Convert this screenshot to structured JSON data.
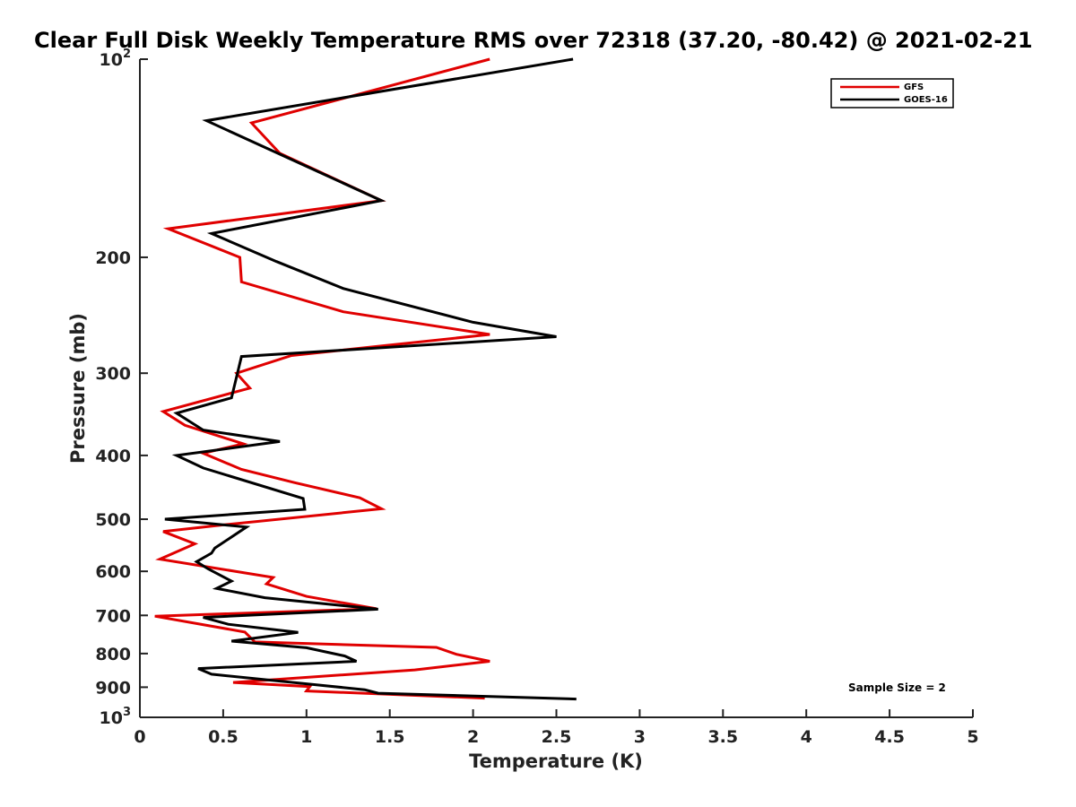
{
  "chart_data": {
    "type": "line",
    "title": "Clear Full Disk Weekly Temperature RMS over 72318 (37.20, -80.42) @ 2021-02-21",
    "xlabel": "Temperature (K)",
    "ylabel": "Pressure (mb)",
    "xlim": [
      0,
      5
    ],
    "ylim": [
      100,
      1000
    ],
    "y_scale": "log",
    "y_reversed": true,
    "grid": false,
    "legend_position": "top-right",
    "x_ticks": [
      {
        "value": 0,
        "label": "0"
      },
      {
        "value": 0.5,
        "label": "0.5"
      },
      {
        "value": 1,
        "label": "1"
      },
      {
        "value": 1.5,
        "label": "1.5"
      },
      {
        "value": 2,
        "label": "2"
      },
      {
        "value": 2.5,
        "label": "2.5"
      },
      {
        "value": 3,
        "label": "3"
      },
      {
        "value": 3.5,
        "label": "3.5"
      },
      {
        "value": 4,
        "label": "4"
      },
      {
        "value": 4.5,
        "label": "4.5"
      },
      {
        "value": 5,
        "label": "5"
      }
    ],
    "y_ticks": [
      {
        "value": 100,
        "label": "10",
        "sup": "2"
      },
      {
        "value": 200,
        "label": "200",
        "sup": ""
      },
      {
        "value": 300,
        "label": "300",
        "sup": ""
      },
      {
        "value": 400,
        "label": "400",
        "sup": ""
      },
      {
        "value": 500,
        "label": "500",
        "sup": ""
      },
      {
        "value": 600,
        "label": "600",
        "sup": ""
      },
      {
        "value": 700,
        "label": "700",
        "sup": ""
      },
      {
        "value": 800,
        "label": "800",
        "sup": ""
      },
      {
        "value": 900,
        "label": "900",
        "sup": ""
      },
      {
        "value": 1000,
        "label": "10",
        "sup": "3"
      }
    ],
    "series": [
      {
        "name": "GFS",
        "color": "#e00000",
        "points": [
          [
            2.1,
            100
          ],
          [
            0.67,
            125
          ],
          [
            0.84,
            139
          ],
          [
            1.45,
            164
          ],
          [
            0.17,
            181
          ],
          [
            0.6,
            200
          ],
          [
            0.61,
            218
          ],
          [
            1.22,
            242
          ],
          [
            2.1,
            262
          ],
          [
            0.91,
            282
          ],
          [
            0.58,
            300
          ],
          [
            0.66,
            316
          ],
          [
            0.14,
            343
          ],
          [
            0.27,
            360
          ],
          [
            0.62,
            384
          ],
          [
            0.38,
            397
          ],
          [
            0.61,
            420
          ],
          [
            0.93,
            440
          ],
          [
            1.32,
            464
          ],
          [
            1.45,
            482
          ],
          [
            0.5,
            510
          ],
          [
            0.14,
            522
          ],
          [
            0.33,
            545
          ],
          [
            0.12,
            575
          ],
          [
            0.8,
            613
          ],
          [
            0.76,
            627
          ],
          [
            1.0,
            655
          ],
          [
            1.42,
            684
          ],
          [
            0.09,
            702
          ],
          [
            0.63,
            742
          ],
          [
            0.69,
            768
          ],
          [
            1.78,
            783
          ],
          [
            1.9,
            802
          ],
          [
            2.1,
            822
          ],
          [
            1.65,
            847
          ],
          [
            0.56,
            885
          ],
          [
            1.02,
            898
          ],
          [
            1.0,
            912
          ],
          [
            2.07,
            935
          ]
        ]
      },
      {
        "name": "GOES-16",
        "color": "#000000",
        "points": [
          [
            2.6,
            100
          ],
          [
            0.4,
            124
          ],
          [
            1.45,
            164
          ],
          [
            0.43,
            184
          ],
          [
            0.82,
            203
          ],
          [
            1.22,
            223
          ],
          [
            2.0,
            251
          ],
          [
            2.5,
            264
          ],
          [
            0.61,
            283
          ],
          [
            0.55,
            327
          ],
          [
            0.22,
            345
          ],
          [
            0.38,
            366
          ],
          [
            0.84,
            381
          ],
          [
            0.22,
            400
          ],
          [
            0.38,
            418
          ],
          [
            0.98,
            465
          ],
          [
            0.99,
            483
          ],
          [
            0.15,
            500
          ],
          [
            0.64,
            514
          ],
          [
            0.45,
            553
          ],
          [
            0.43,
            563
          ],
          [
            0.34,
            580
          ],
          [
            0.41,
            595
          ],
          [
            0.55,
            621
          ],
          [
            0.46,
            637
          ],
          [
            0.75,
            658
          ],
          [
            1.43,
            685
          ],
          [
            0.38,
            705
          ],
          [
            0.53,
            722
          ],
          [
            0.95,
            743
          ],
          [
            0.55,
            766
          ],
          [
            1.0,
            784
          ],
          [
            1.23,
            807
          ],
          [
            1.3,
            822
          ],
          [
            0.35,
            843
          ],
          [
            0.43,
            860
          ],
          [
            1.35,
            908
          ],
          [
            1.43,
            919
          ],
          [
            2.62,
            938
          ]
        ]
      }
    ],
    "annotations": [
      {
        "text": "Sample Size = 2"
      }
    ]
  }
}
